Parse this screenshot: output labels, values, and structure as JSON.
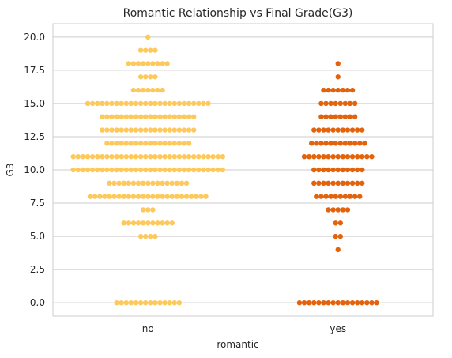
{
  "chart_data": {
    "type": "scatter",
    "title": "Romantic Relationship vs Final Grade(G3)",
    "xlabel": "romantic",
    "ylabel": "G3",
    "categories": [
      "no",
      "yes"
    ],
    "ylim": [
      -1,
      21
    ],
    "yticks": [
      "0.0",
      "2.5",
      "5.0",
      "7.5",
      "10.0",
      "12.5",
      "15.0",
      "17.5",
      "20.0"
    ],
    "grid": true,
    "colors": {
      "no": "#fdc95c",
      "yes": "#e3630d"
    },
    "series": [
      {
        "category": "no",
        "points": [
          {
            "y": 0,
            "count": 14
          },
          {
            "y": 5,
            "count": 4
          },
          {
            "y": 6,
            "count": 11
          },
          {
            "y": 7,
            "count": 3
          },
          {
            "y": 8,
            "count": 25
          },
          {
            "y": 9,
            "count": 17
          },
          {
            "y": 10,
            "count": 32
          },
          {
            "y": 11,
            "count": 32
          },
          {
            "y": 12,
            "count": 18
          },
          {
            "y": 13,
            "count": 20
          },
          {
            "y": 14,
            "count": 20
          },
          {
            "y": 15,
            "count": 26
          },
          {
            "y": 16,
            "count": 7
          },
          {
            "y": 17,
            "count": 4
          },
          {
            "y": 18,
            "count": 9
          },
          {
            "y": 19,
            "count": 4
          },
          {
            "y": 20,
            "count": 1
          }
        ]
      },
      {
        "category": "yes",
        "points": [
          {
            "y": 0,
            "count": 17
          },
          {
            "y": 4,
            "count": 1
          },
          {
            "y": 5,
            "count": 2
          },
          {
            "y": 6,
            "count": 2
          },
          {
            "y": 7,
            "count": 5
          },
          {
            "y": 8,
            "count": 10
          },
          {
            "y": 9,
            "count": 11
          },
          {
            "y": 10,
            "count": 11
          },
          {
            "y": 11,
            "count": 15
          },
          {
            "y": 12,
            "count": 12
          },
          {
            "y": 13,
            "count": 11
          },
          {
            "y": 14,
            "count": 8
          },
          {
            "y": 15,
            "count": 8
          },
          {
            "y": 16,
            "count": 7
          },
          {
            "y": 17,
            "count": 1
          },
          {
            "y": 18,
            "count": 1
          }
        ]
      }
    ]
  }
}
